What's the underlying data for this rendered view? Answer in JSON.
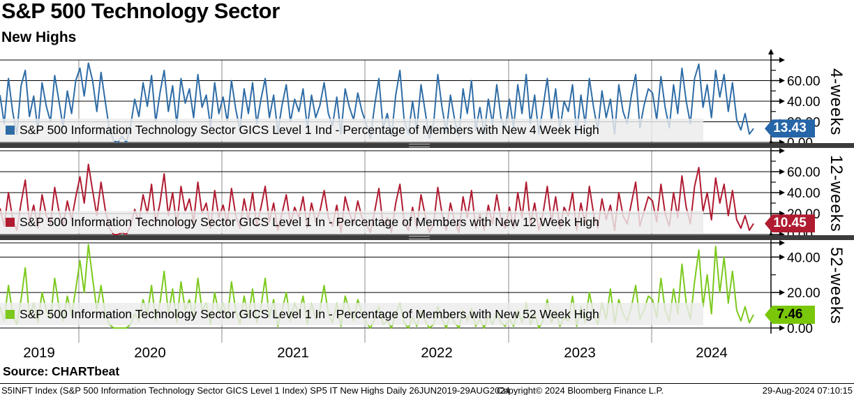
{
  "header": {
    "title": "S&P 500 Technology Sector",
    "subtitle": "New Highs"
  },
  "source_label": "Source: CHARTbeat",
  "footer": {
    "left": "S5INFT Index (S&P 500 Information Technology Sector GICS Level 1 Index) SP5 IT New Highs  Daily 26JUN2019-29AUG2024",
    "center": "Copyright© 2024 Bloomberg Finance L.P.",
    "right": "29-Aug-2024 07:10:15"
  },
  "chart_data": {
    "type": "line",
    "title": "S&P 500 Technology Sector",
    "subtitle": "New Highs",
    "x_span": "26JUN2019-29AUG2024",
    "x_tick_labels": [
      "2019",
      "2020",
      "2021",
      "2022",
      "2023",
      "2024"
    ],
    "grid": true,
    "panels": [
      {
        "axis_label": "4-weeks",
        "legend": "S&P 500 Information Technology Sector GICS Level 1 Ind - Percentage of Members with New 4 Week High",
        "color": "#2e6ca6",
        "tag_color": "#2565a8",
        "tag_text": "#ffffff",
        "last_value": "13.43",
        "ylim": [
          0,
          80
        ],
        "yticks": [
          0,
          20,
          40,
          60
        ],
        "values": [
          46,
          18,
          62,
          30,
          8,
          55,
          70,
          25,
          45,
          12,
          58,
          35,
          20,
          65,
          40,
          15,
          50,
          28,
          60,
          72,
          45,
          77,
          60,
          30,
          68,
          40,
          12,
          2,
          0,
          6,
          0,
          15,
          42,
          25,
          58,
          35,
          65,
          20,
          48,
          70,
          30,
          55,
          18,
          62,
          38,
          52,
          24,
          66,
          34,
          46,
          15,
          58,
          28,
          44,
          20,
          60,
          32,
          12,
          52,
          28,
          58,
          18,
          42,
          62,
          24,
          46,
          10,
          36,
          56,
          20,
          42,
          30,
          52,
          14,
          46,
          24,
          36,
          58,
          28,
          16,
          44,
          8,
          52,
          34,
          22,
          48,
          30,
          18,
          4,
          36,
          62,
          14,
          28,
          6,
          46,
          70,
          22,
          8,
          40,
          12,
          56,
          30,
          4,
          18,
          66,
          34,
          10,
          46,
          22,
          6,
          52,
          28,
          60,
          12,
          34,
          8,
          42,
          18,
          56,
          24,
          12,
          42,
          14,
          56,
          28,
          66,
          18,
          46,
          8,
          34,
          62,
          22,
          52,
          12,
          40,
          30,
          56,
          8,
          46,
          18,
          62,
          34,
          12,
          50,
          24,
          42,
          8,
          56,
          30,
          18,
          46,
          66,
          14,
          36,
          52,
          48,
          22,
          64,
          34,
          14,
          56,
          28,
          72,
          40,
          18,
          62,
          76,
          34,
          56,
          24,
          70,
          44,
          66,
          30,
          58,
          22,
          12,
          28,
          8,
          13.43
        ]
      },
      {
        "axis_label": "12-weeks",
        "legend": "S&P 500 Information Technology Sector GICS Level 1 In - Percentage of Members with New 12 Week High",
        "color": "#b01b31",
        "tag_color": "#b01b31",
        "tag_text": "#ffffff",
        "last_value": "10.45",
        "ylim": [
          0,
          80
        ],
        "yticks": [
          0,
          20,
          40,
          60
        ],
        "values": [
          25,
          8,
          40,
          15,
          4,
          30,
          52,
          12,
          28,
          6,
          38,
          18,
          10,
          45,
          22,
          8,
          32,
          14,
          36,
          55,
          30,
          67,
          42,
          18,
          50,
          24,
          6,
          0,
          0,
          2,
          0,
          8,
          24,
          12,
          38,
          20,
          48,
          10,
          30,
          58,
          18,
          40,
          8,
          46,
          22,
          34,
          12,
          50,
          20,
          30,
          6,
          42,
          16,
          28,
          10,
          44,
          18,
          6,
          34,
          14,
          40,
          8,
          26,
          46,
          12,
          30,
          4,
          20,
          38,
          10,
          26,
          16,
          36,
          6,
          30,
          12,
          22,
          42,
          16,
          8,
          28,
          2,
          36,
          20,
          10,
          32,
          16,
          10,
          2,
          22,
          44,
          8,
          16,
          2,
          30,
          48,
          12,
          4,
          26,
          6,
          38,
          18,
          2,
          10,
          45,
          20,
          4,
          30,
          12,
          2,
          36,
          16,
          42,
          6,
          20,
          4,
          28,
          10,
          38,
          14,
          6,
          26,
          6,
          40,
          16,
          50,
          10,
          30,
          4,
          20,
          46,
          12,
          36,
          6,
          26,
          18,
          40,
          4,
          30,
          10,
          46,
          20,
          6,
          34,
          14,
          28,
          4,
          40,
          18,
          10,
          30,
          50,
          8,
          22,
          36,
          32,
          12,
          48,
          20,
          8,
          40,
          16,
          56,
          26,
          10,
          46,
          64,
          22,
          40,
          14,
          54,
          30,
          48,
          18,
          42,
          14,
          6,
          18,
          4,
          10.45
        ]
      },
      {
        "axis_label": "52-weeks",
        "legend": "S&P 500 Information Technology Sector GICS Level 1 In - Percentage of Members with New 52 Week High",
        "color": "#7cc91e",
        "tag_color": "#79c708",
        "tag_text": "#000000",
        "last_value": "7.46",
        "ylim": [
          0,
          48
        ],
        "yticks": [
          0,
          20,
          40
        ],
        "values": [
          12,
          4,
          24,
          8,
          2,
          16,
          34,
          6,
          14,
          3,
          20,
          10,
          5,
          28,
          12,
          4,
          18,
          7,
          22,
          38,
          20,
          47,
          28,
          10,
          24,
          8,
          2,
          0,
          0,
          0,
          0,
          2,
          8,
          4,
          16,
          8,
          24,
          4,
          14,
          32,
          8,
          22,
          3,
          26,
          10,
          16,
          5,
          28,
          10,
          14,
          2,
          20,
          8,
          14,
          5,
          26,
          10,
          2,
          18,
          6,
          22,
          3,
          12,
          28,
          6,
          16,
          1,
          10,
          20,
          4,
          14,
          8,
          18,
          2,
          14,
          5,
          10,
          24,
          8,
          3,
          14,
          1,
          18,
          10,
          4,
          16,
          8,
          3,
          0,
          5,
          12,
          2,
          4,
          0,
          8,
          14,
          3,
          0,
          6,
          1,
          10,
          4,
          0,
          2,
          12,
          5,
          0,
          8,
          3,
          0,
          10,
          4,
          11,
          1,
          5,
          0,
          7,
          2,
          9,
          3,
          1,
          5,
          1,
          10,
          3,
          14,
          2,
          8,
          0,
          4,
          16,
          3,
          10,
          1,
          6,
          4,
          18,
          1,
          12,
          3,
          20,
          8,
          2,
          14,
          5,
          22,
          3,
          16,
          8,
          4,
          12,
          24,
          5,
          10,
          18,
          16,
          6,
          28,
          10,
          4,
          22,
          8,
          36,
          14,
          5,
          26,
          44,
          12,
          30,
          8,
          46,
          20,
          40,
          14,
          32,
          10,
          4,
          12,
          3,
          7.46
        ]
      }
    ]
  }
}
